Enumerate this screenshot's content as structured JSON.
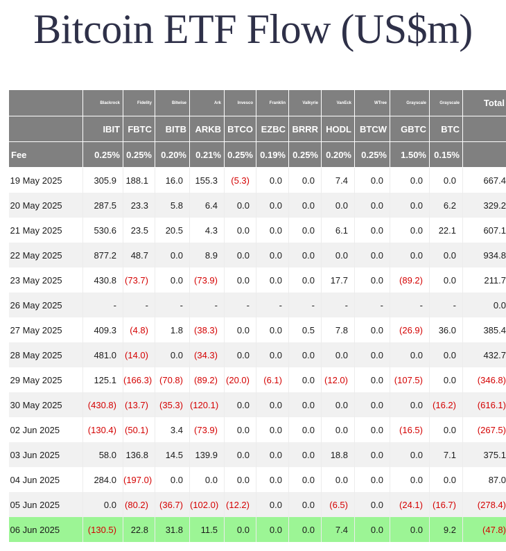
{
  "title": "Bitcoin ETF Flow (US$m)",
  "header": {
    "issuers": [
      "Blackrock",
      "Fidelity",
      "Bitwise",
      "Ark",
      "Invesco",
      "Franklin",
      "Valkyrie",
      "VanEck",
      "WTree",
      "Grayscale",
      "Grayscale"
    ],
    "total_label": "Total",
    "tickers": [
      "IBIT",
      "FBTC",
      "BITB",
      "ARKB",
      "BTCO",
      "EZBC",
      "BRRR",
      "HODL",
      "BTCW",
      "GBTC",
      "BTC"
    ],
    "fee_label": "Fee",
    "fees": [
      "0.25%",
      "0.25%",
      "0.20%",
      "0.21%",
      "0.25%",
      "0.19%",
      "0.25%",
      "0.20%",
      "0.25%",
      "1.50%",
      "0.15%"
    ]
  },
  "rows": [
    {
      "date": "19 May 2025",
      "values": [
        "305.9",
        "188.1",
        "16.0",
        "155.3",
        "(5.3)",
        "0.0",
        "0.0",
        "7.4",
        "0.0",
        "0.0",
        "0.0"
      ],
      "total": "667.4"
    },
    {
      "date": "20 May 2025",
      "values": [
        "287.5",
        "23.3",
        "5.8",
        "6.4",
        "0.0",
        "0.0",
        "0.0",
        "0.0",
        "0.0",
        "0.0",
        "6.2"
      ],
      "total": "329.2"
    },
    {
      "date": "21 May 2025",
      "values": [
        "530.6",
        "23.5",
        "20.5",
        "4.3",
        "0.0",
        "0.0",
        "0.0",
        "6.1",
        "0.0",
        "0.0",
        "22.1"
      ],
      "total": "607.1"
    },
    {
      "date": "22 May 2025",
      "values": [
        "877.2",
        "48.7",
        "0.0",
        "8.9",
        "0.0",
        "0.0",
        "0.0",
        "0.0",
        "0.0",
        "0.0",
        "0.0"
      ],
      "total": "934.8"
    },
    {
      "date": "23 May 2025",
      "values": [
        "430.8",
        "(73.7)",
        "0.0",
        "(73.9)",
        "0.0",
        "0.0",
        "0.0",
        "17.7",
        "0.0",
        "(89.2)",
        "0.0"
      ],
      "total": "211.7"
    },
    {
      "date": "26 May 2025",
      "values": [
        "-",
        "-",
        "-",
        "-",
        "-",
        "-",
        "-",
        "-",
        "-",
        "-",
        "-"
      ],
      "total": "0.0"
    },
    {
      "date": "27 May 2025",
      "values": [
        "409.3",
        "(4.8)",
        "1.8",
        "(38.3)",
        "0.0",
        "0.0",
        "0.5",
        "7.8",
        "0.0",
        "(26.9)",
        "36.0"
      ],
      "total": "385.4"
    },
    {
      "date": "28 May 2025",
      "values": [
        "481.0",
        "(14.0)",
        "0.0",
        "(34.3)",
        "0.0",
        "0.0",
        "0.0",
        "0.0",
        "0.0",
        "0.0",
        "0.0"
      ],
      "total": "432.7"
    },
    {
      "date": "29 May 2025",
      "values": [
        "125.1",
        "(166.3)",
        "(70.8)",
        "(89.2)",
        "(20.0)",
        "(6.1)",
        "0.0",
        "(12.0)",
        "0.0",
        "(107.5)",
        "0.0"
      ],
      "total": "(346.8)"
    },
    {
      "date": "30 May 2025",
      "values": [
        "(430.8)",
        "(13.7)",
        "(35.3)",
        "(120.1)",
        "0.0",
        "0.0",
        "0.0",
        "0.0",
        "0.0",
        "0.0",
        "(16.2)"
      ],
      "total": "(616.1)"
    },
    {
      "date": "02 Jun 2025",
      "values": [
        "(130.4)",
        "(50.1)",
        "3.4",
        "(73.9)",
        "0.0",
        "0.0",
        "0.0",
        "0.0",
        "0.0",
        "(16.5)",
        "0.0"
      ],
      "total": "(267.5)"
    },
    {
      "date": "03 Jun 2025",
      "values": [
        "58.0",
        "136.8",
        "14.5",
        "139.9",
        "0.0",
        "0.0",
        "0.0",
        "18.8",
        "0.0",
        "0.0",
        "7.1"
      ],
      "total": "375.1"
    },
    {
      "date": "04 Jun 2025",
      "values": [
        "284.0",
        "(197.0)",
        "0.0",
        "0.0",
        "0.0",
        "0.0",
        "0.0",
        "0.0",
        "0.0",
        "0.0",
        "0.0"
      ],
      "total": "87.0"
    },
    {
      "date": "05 Jun 2025",
      "values": [
        "0.0",
        "(80.2)",
        "(36.7)",
        "(102.0)",
        "(12.2)",
        "0.0",
        "0.0",
        "(6.5)",
        "0.0",
        "(24.1)",
        "(16.7)"
      ],
      "total": "(278.4)"
    },
    {
      "date": "06 Jun 2025",
      "values": [
        "(130.5)",
        "22.8",
        "31.8",
        "11.5",
        "0.0",
        "0.0",
        "0.0",
        "7.4",
        "0.0",
        "0.0",
        "9.2"
      ],
      "total": "(47.8)",
      "highlight": true
    }
  ],
  "colors": {
    "header_bg": "#808080",
    "negative": "#d40000",
    "highlight_row": "#9cf595",
    "title": "#2e3048"
  }
}
